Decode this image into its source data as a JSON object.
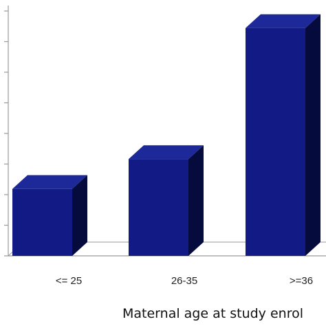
{
  "chart_data": {
    "type": "bar",
    "style": "3d-bar",
    "categories": [
      "<= 25",
      "26-35",
      ">=36"
    ],
    "values": [
      2.35,
      3.4,
      8.0
    ],
    "ylim": [
      0,
      8.5
    ],
    "y_tick_count": 9,
    "xlabel": "Maternal age at study enrol",
    "ylabel": "",
    "title": "",
    "grid": false,
    "colors": {
      "front": "#111a85",
      "top": "#1d2899",
      "side": "#060b3d",
      "axis": "#999999"
    }
  }
}
